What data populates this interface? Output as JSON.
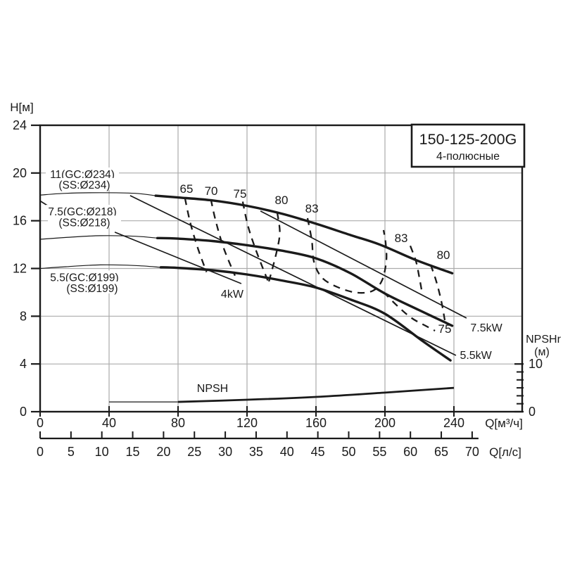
{
  "title_box": {
    "model": "150-125-200G",
    "subtitle": "4-полюсные"
  },
  "colors": {
    "background": "#ffffff",
    "line": "#1a1a1a",
    "grid": "#ababab",
    "text": "#1a1a1a"
  },
  "chart_data": {
    "type": "line",
    "title": "150-125-200G 4-pole pump performance curves",
    "x_axis": {
      "label": "Q[м³/ч]",
      "min": 0,
      "max": 240,
      "ticks": [
        0,
        40,
        80,
        120,
        160,
        200,
        240
      ]
    },
    "x2_axis": {
      "label": "Q[л/с]",
      "min": 0,
      "max": 70,
      "ticks": [
        0,
        5,
        10,
        15,
        20,
        25,
        30,
        35,
        40,
        45,
        50,
        55,
        60,
        65,
        70
      ]
    },
    "y_axis": {
      "label": "H[м]",
      "min": 0,
      "max": 24,
      "ticks": [
        0,
        4,
        8,
        12,
        16,
        20,
        24
      ]
    },
    "right_axis": {
      "label": "NPSHr",
      "unit": "(м)",
      "min": 0,
      "max": 10,
      "labeled_ticks": [
        0,
        10
      ],
      "minor_tick_count": 5
    },
    "grid": true,
    "pump_curves": [
      {
        "id": "curve-11",
        "label_lines": [
          {
            "text": "11(GC:Ø234)",
            "q": 24.5,
            "h": 19.93
          },
          {
            "text": "(SS:Ø234)",
            "q": 25.7,
            "h": 19.05
          }
        ],
        "thin_points": [
          [
            0,
            18.15
          ],
          [
            15,
            18.3
          ],
          [
            35,
            18.35
          ],
          [
            55,
            18.3
          ],
          [
            67,
            18.1
          ]
        ],
        "thick_points": [
          [
            67,
            18.1
          ],
          [
            80,
            17.95
          ],
          [
            100,
            17.7
          ],
          [
            120,
            17.25
          ],
          [
            140,
            16.6
          ],
          [
            160,
            15.75
          ],
          [
            180,
            14.8
          ],
          [
            197,
            14.0
          ],
          [
            218,
            12.7
          ],
          [
            239,
            11.6
          ]
        ]
      },
      {
        "id": "curve-7.5",
        "label_lines": [
          {
            "text": "7.5(GC:Ø218)",
            "q": 24.5,
            "h": 16.8
          },
          {
            "text": "(SS:Ø218)",
            "q": 25.7,
            "h": 15.9
          }
        ],
        "thin_points": [
          [
            0,
            14.45
          ],
          [
            15,
            14.6
          ],
          [
            35,
            14.75
          ],
          [
            55,
            14.7
          ],
          [
            68,
            14.55
          ]
        ],
        "thick_points": [
          [
            68,
            14.55
          ],
          [
            80,
            14.5
          ],
          [
            100,
            14.3
          ],
          [
            120,
            13.95
          ],
          [
            140,
            13.5
          ],
          [
            160,
            12.85
          ],
          [
            180,
            11.6
          ],
          [
            200,
            9.9
          ],
          [
            220,
            8.5
          ],
          [
            239,
            7.2
          ]
        ]
      },
      {
        "id": "curve-5.5",
        "label_lines": [
          {
            "text": "5.5(GC:Ø199)",
            "q": 25.7,
            "h": 11.3
          },
          {
            "text": "(SS:Ø199)",
            "q": 30.2,
            "h": 10.38
          }
        ],
        "thin_points": [
          [
            0,
            12.0
          ],
          [
            15,
            12.15
          ],
          [
            35,
            12.3
          ],
          [
            55,
            12.25
          ],
          [
            70,
            12.1
          ]
        ],
        "thick_points": [
          [
            70,
            12.1
          ],
          [
            80,
            12.05
          ],
          [
            100,
            11.85
          ],
          [
            120,
            11.5
          ],
          [
            140,
            11.0
          ],
          [
            160,
            10.4
          ],
          [
            180,
            9.4
          ],
          [
            200,
            8.2
          ],
          [
            222,
            5.9
          ],
          [
            238,
            4.3
          ]
        ]
      }
    ],
    "power_lines": [
      {
        "id": "power-4kw",
        "label": "4kW",
        "label_q": 111.4,
        "label_h": 9.91,
        "segments": [
          [
            [
              0,
              17.66
            ],
            [
              8.2,
              16.92
            ]
          ],
          [
            [
              43.3,
              15.04
            ],
            [
              116.7,
              10.73
            ]
          ]
        ]
      },
      {
        "id": "power-5.5kw",
        "label": "5.5kW",
        "label_q": 252.7,
        "label_h": 4.78,
        "segments": [
          [
            [
              52.2,
              18.11
            ],
            [
              241.2,
              4.72
            ]
          ]
        ]
      },
      {
        "id": "power-7.5kw",
        "label": "7.5kW",
        "label_q": 258.8,
        "label_h": 7.08,
        "segments": [
          [
            [
              127.8,
              16.81
            ],
            [
              247.3,
              7.84
            ]
          ]
        ]
      }
    ],
    "efficiency_curves": [
      {
        "id": "eff-65",
        "label": "65",
        "label_q": 84.9,
        "label_h": 18.69,
        "points": [
          [
            84,
            17.9
          ],
          [
            87,
            15.9
          ],
          [
            91,
            13.9
          ],
          [
            96.5,
            11.7
          ]
        ]
      },
      {
        "id": "eff-70",
        "label": "70",
        "label_q": 99.2,
        "label_h": 18.52,
        "points": [
          [
            99,
            17.8
          ],
          [
            102,
            15.9
          ],
          [
            106.5,
            13.7
          ],
          [
            113,
            11.4
          ]
        ]
      },
      {
        "id": "eff-75",
        "label": "75",
        "label_q": 115.9,
        "label_h": 18.28,
        "points": [
          [
            117.5,
            17.6
          ],
          [
            120.5,
            15.6
          ],
          [
            125,
            13.6
          ],
          [
            132,
            11.0
          ]
        ]
      },
      {
        "id": "eff-80",
        "label": "80",
        "label_q": 140.0,
        "label_h": 17.75,
        "points": [
          [
            137.5,
            16.7
          ],
          [
            139,
            15.0
          ],
          [
            137,
            13.3
          ],
          [
            132.5,
            10.8
          ]
        ]
      },
      {
        "id": "eff-83",
        "label": "83",
        "label_q": 157.6,
        "label_h": 17.04,
        "points": [
          [
            155.1,
            16.22
          ],
          [
            157.6,
            14.33
          ],
          [
            158.8,
            12.56
          ],
          [
            163.7,
            11.2
          ],
          [
            173.5,
            10.38
          ],
          [
            184.1,
            9.97
          ],
          [
            193.1,
            10.14
          ],
          [
            198.4,
            11.03
          ],
          [
            200.8,
            12.68
          ],
          [
            200.4,
            14.15
          ],
          [
            199.2,
            15.22
          ]
        ]
      },
      {
        "id": "eff-83-right",
        "label": "83",
        "label_q": 209.4,
        "label_h": 14.56,
        "points": [
          [
            214.7,
            13.9
          ],
          [
            218.0,
            12.6
          ],
          [
            220.0,
            11.2
          ],
          [
            221.6,
            9.9
          ]
        ]
      },
      {
        "id": "eff-80-right",
        "label": "80",
        "label_q": 233.9,
        "label_h": 13.15,
        "points": [
          [
            226.5,
            12.32
          ],
          [
            229.8,
            10.91
          ],
          [
            232.7,
            9.26
          ],
          [
            234.7,
            7.67
          ]
        ]
      },
      {
        "id": "eff-75-right",
        "label": "75",
        "label_q": 234.7,
        "label_h": 6.96,
        "points": [
          [
            199.2,
            10.02
          ],
          [
            207.3,
            8.85
          ],
          [
            215.5,
            7.84
          ],
          [
            223.7,
            7.19
          ],
          [
            229.0,
            6.78
          ]
        ]
      }
    ],
    "npsh_curve": {
      "label": "NPSH",
      "label_q": 100.0,
      "label_h": 1.95,
      "thin_points": [
        [
          40,
          2.05
        ],
        [
          80,
          2.05
        ]
      ],
      "thick_points": [
        [
          80,
          2.05
        ],
        [
          120,
          2.5
        ],
        [
          160,
          3.1
        ],
        [
          200,
          4.0
        ],
        [
          240,
          5.0
        ]
      ]
    }
  }
}
